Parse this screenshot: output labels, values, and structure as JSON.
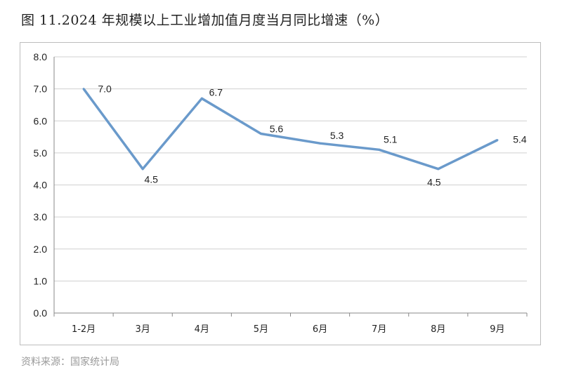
{
  "title": "图 11.2024 年规模以上工业增加值月度当月同比增速（%）",
  "source": "资料来源：国家统计局",
  "chart_data": {
    "type": "line",
    "categories": [
      "1-2月",
      "3月",
      "4月",
      "5月",
      "6月",
      "7月",
      "8月",
      "9月"
    ],
    "series": [
      {
        "values": [
          7.0,
          4.5,
          6.7,
          5.6,
          5.3,
          5.1,
          4.5,
          5.4
        ],
        "color": "#6a9acb"
      }
    ],
    "data_labels": [
      "7.0",
      "4.5",
      "6.7",
      "5.6",
      "5.3",
      "5.1",
      "4.5",
      "5.4"
    ],
    "yticks": [
      "0.0",
      "1.0",
      "2.0",
      "3.0",
      "4.0",
      "5.0",
      "6.0",
      "7.0",
      "8.0"
    ],
    "ylim": [
      0,
      8
    ],
    "grid": true,
    "legend": "none"
  }
}
